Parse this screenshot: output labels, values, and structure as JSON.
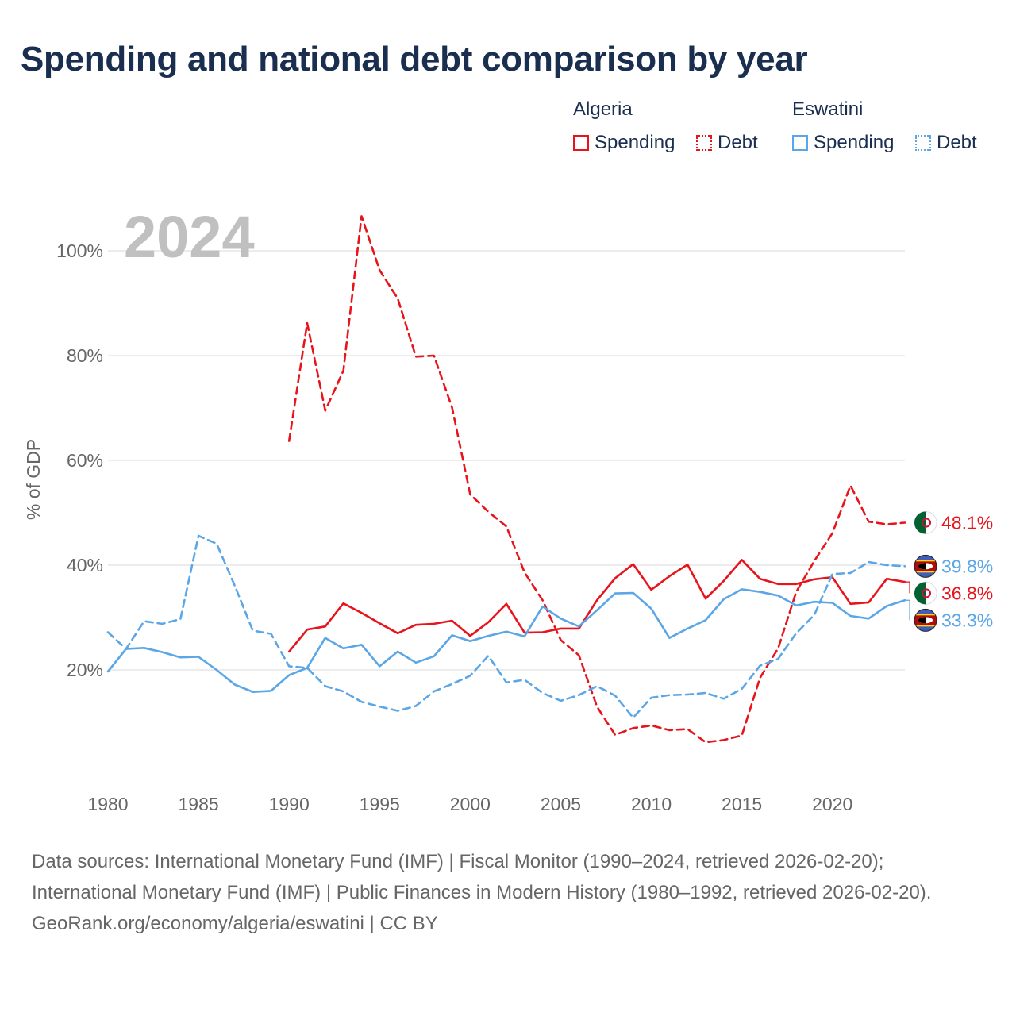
{
  "title": "Spending and national debt comparison by year",
  "legend": {
    "groups": [
      {
        "name": "Algeria",
        "items": [
          "Spending",
          "Debt"
        ]
      },
      {
        "name": "Eswatini",
        "items": [
          "Spending",
          "Debt"
        ]
      }
    ]
  },
  "year_label": "2024",
  "footer": {
    "sources": "Data sources: International Monetary Fund (IMF) | Fiscal Monitor (1990–2024, retrieved 2026-02-20); International Monetary Fund (IMF) | Public Finances in Modern History (1980–1992, retrieved 2026-02-20).",
    "credit": "GeoRank.org/economy/algeria/eswatini | CC BY"
  },
  "colors": {
    "algeria": "#e8141c",
    "eswatini": "#5aa6e6",
    "grid": "#e6e6e6",
    "axis_text": "#666666",
    "year_label": "#c0c0c0"
  },
  "chart_data": {
    "type": "line",
    "title": "Spending and national debt comparison by year",
    "xlabel": "",
    "ylabel": "% of GDP",
    "xlim": [
      1980,
      2024
    ],
    "ylim": [
      0,
      110
    ],
    "x_ticks": [
      1980,
      1985,
      1990,
      1995,
      2000,
      2005,
      2010,
      2015,
      2020
    ],
    "x_tick_labels": [
      "1980",
      "1985",
      "1990",
      "1995",
      "2000",
      "2005",
      "2010",
      "2015",
      "2020"
    ],
    "y_ticks": [
      20,
      40,
      60,
      80,
      100
    ],
    "y_tick_labels": [
      "20%",
      "40%",
      "60%",
      "80%",
      "100%"
    ],
    "series": [
      {
        "name": "Algeria Spending",
        "country": "Algeria",
        "style": "solid",
        "color": "#e8141c",
        "end_label": "36.8%",
        "x": [
          1990,
          1991,
          1992,
          1993,
          1994,
          1995,
          1996,
          1997,
          1998,
          1999,
          2000,
          2001,
          2002,
          2003,
          2004,
          2005,
          2006,
          2007,
          2008,
          2009,
          2010,
          2011,
          2012,
          2013,
          2014,
          2015,
          2016,
          2017,
          2018,
          2019,
          2020,
          2021,
          2022,
          2023,
          2024
        ],
        "values": [
          23.5,
          27.7,
          28.3,
          32.7,
          30.9,
          28.9,
          27.0,
          28.6,
          28.8,
          29.4,
          26.5,
          29.1,
          32.6,
          27.1,
          27.2,
          27.9,
          27.9,
          33.3,
          37.5,
          40.2,
          35.3,
          37.9,
          40.1,
          33.6,
          37.0,
          41.0,
          37.4,
          36.4,
          36.4,
          37.3,
          37.7,
          32.6,
          32.9,
          37.4,
          36.8
        ]
      },
      {
        "name": "Algeria Debt",
        "country": "Algeria",
        "style": "dashed",
        "color": "#e8141c",
        "end_label": "48.1%",
        "x": [
          1990,
          1991,
          1992,
          1993,
          1994,
          1995,
          1996,
          1997,
          1998,
          1999,
          2000,
          2001,
          2002,
          2003,
          2004,
          2005,
          2006,
          2007,
          2008,
          2009,
          2010,
          2011,
          2012,
          2013,
          2014,
          2015,
          2016,
          2017,
          2018,
          2019,
          2020,
          2021,
          2022,
          2023,
          2024
        ],
        "values": [
          63.7,
          86.2,
          69.5,
          77.1,
          106.6,
          96.3,
          90.9,
          79.8,
          80.0,
          70.1,
          53.5,
          50.2,
          47.4,
          38.6,
          33.3,
          25.7,
          22.8,
          13.0,
          7.6,
          8.9,
          9.4,
          8.5,
          8.7,
          6.2,
          6.6,
          7.5,
          18.5,
          24.1,
          34.9,
          40.8,
          46.1,
          55.2,
          48.3,
          47.8,
          48.1
        ]
      },
      {
        "name": "Eswatini Spending",
        "country": "Eswatini",
        "style": "solid",
        "color": "#5aa6e6",
        "end_label": "33.3%",
        "x": [
          1980,
          1981,
          1982,
          1983,
          1984,
          1985,
          1986,
          1987,
          1988,
          1989,
          1990,
          1991,
          1992,
          1993,
          1994,
          1995,
          1996,
          1997,
          1998,
          1999,
          2000,
          2001,
          2002,
          2003,
          2004,
          2005,
          2006,
          2007,
          2008,
          2009,
          2010,
          2011,
          2012,
          2013,
          2014,
          2015,
          2016,
          2017,
          2018,
          2019,
          2020,
          2021,
          2022,
          2023,
          2024
        ],
        "values": [
          19.7,
          24.0,
          24.2,
          23.4,
          22.4,
          22.5,
          20.0,
          17.2,
          15.8,
          16.0,
          19.0,
          20.4,
          26.1,
          24.1,
          24.8,
          20.7,
          23.5,
          21.4,
          22.6,
          26.6,
          25.5,
          26.5,
          27.3,
          26.4,
          32.1,
          29.8,
          28.3,
          31.4,
          34.6,
          34.7,
          31.7,
          26.1,
          27.9,
          29.5,
          33.5,
          35.4,
          34.9,
          34.2,
          32.3,
          33.0,
          32.8,
          30.3,
          29.8,
          32.2,
          33.3
        ]
      },
      {
        "name": "Eswatini Debt",
        "country": "Eswatini",
        "style": "dashed",
        "color": "#5aa6e6",
        "end_label": "39.8%",
        "x": [
          1980,
          1981,
          1982,
          1983,
          1984,
          1985,
          1986,
          1987,
          1988,
          1989,
          1990,
          1991,
          1992,
          1993,
          1994,
          1995,
          1996,
          1997,
          1998,
          1999,
          2000,
          2001,
          2002,
          2003,
          2004,
          2005,
          2006,
          2007,
          2008,
          2009,
          2010,
          2011,
          2012,
          2013,
          2014,
          2015,
          2016,
          2017,
          2018,
          2019,
          2020,
          2021,
          2022,
          2023,
          2024
        ],
        "values": [
          27.2,
          24.0,
          29.3,
          28.8,
          29.7,
          45.6,
          44.1,
          36.1,
          27.5,
          26.9,
          20.7,
          20.4,
          16.9,
          15.9,
          13.9,
          13.0,
          12.2,
          13.1,
          15.9,
          17.3,
          18.9,
          22.7,
          17.6,
          18.1,
          15.6,
          14.1,
          15.2,
          16.9,
          15.1,
          10.9,
          14.7,
          15.2,
          15.3,
          15.6,
          14.5,
          16.4,
          20.8,
          22.1,
          27.0,
          30.5,
          38.3,
          38.5,
          40.6,
          40.0,
          39.8
        ]
      }
    ]
  }
}
